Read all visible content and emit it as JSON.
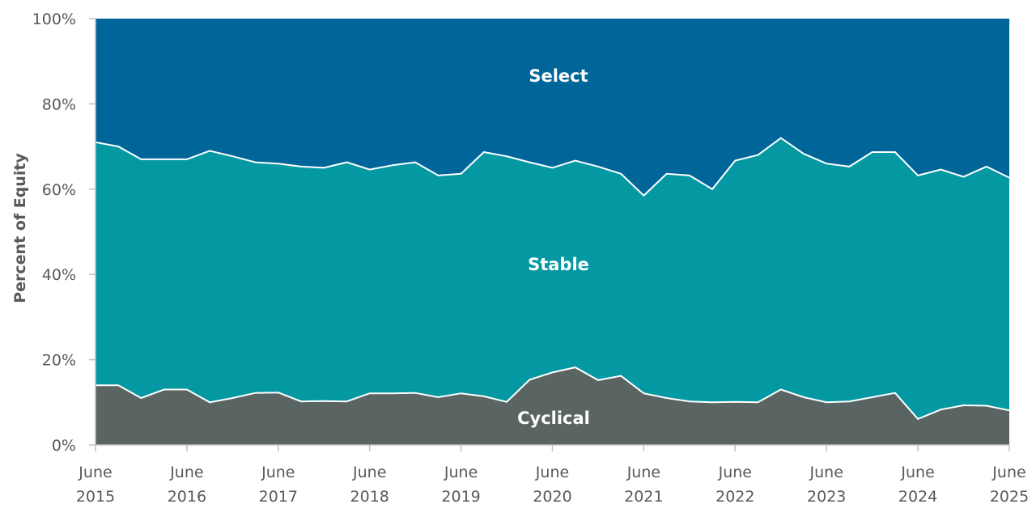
{
  "chart_data": {
    "type": "area",
    "stacked": true,
    "title": "",
    "xlabel": "",
    "ylabel": "Percent of Equity",
    "ylim": [
      0,
      100
    ],
    "yticks": [
      "0%",
      "20%",
      "40%",
      "60%",
      "80%",
      "100%"
    ],
    "ytick_values": [
      0,
      20,
      40,
      60,
      80,
      100
    ],
    "xticks": [
      {
        "month": "June",
        "year": "2015",
        "x": "2015-06"
      },
      {
        "month": "June",
        "year": "2016",
        "x": "2016-06"
      },
      {
        "month": "June",
        "year": "2017",
        "x": "2017-06"
      },
      {
        "month": "June",
        "year": "2018",
        "x": "2018-06"
      },
      {
        "month": "June",
        "year": "2019",
        "x": "2019-06"
      },
      {
        "month": "June",
        "year": "2020",
        "x": "2020-06"
      },
      {
        "month": "June",
        "year": "2021",
        "x": "2021-06"
      },
      {
        "month": "June",
        "year": "2022",
        "x": "2022-06"
      },
      {
        "month": "June",
        "year": "2023",
        "x": "2023-06"
      },
      {
        "month": "June",
        "year": "2024",
        "x": "2024-06"
      },
      {
        "month": "June",
        "year": "2025",
        "x": "2025-06"
      }
    ],
    "grid": false,
    "x": [
      "2015-06",
      "2015-09",
      "2015-12",
      "2016-03",
      "2016-06",
      "2016-09",
      "2016-12",
      "2017-03",
      "2017-06",
      "2017-09",
      "2017-12",
      "2018-03",
      "2018-06",
      "2018-09",
      "2018-12",
      "2019-03",
      "2019-06",
      "2019-09",
      "2019-12",
      "2020-03",
      "2020-06",
      "2020-09",
      "2020-12",
      "2021-03",
      "2021-06",
      "2021-09",
      "2021-12",
      "2022-03",
      "2022-06",
      "2022-09",
      "2022-12",
      "2023-03",
      "2023-06",
      "2023-09",
      "2023-12",
      "2024-03",
      "2024-06",
      "2024-09",
      "2024-12",
      "2025-03",
      "2025-06"
    ],
    "series": [
      {
        "name": "Cyclical",
        "color": "#5A6462",
        "values": [
          14,
          14,
          11,
          13,
          13,
          10,
          11,
          12.2,
          12.3,
          10.2,
          10.3,
          10.2,
          12.1,
          12.1,
          12.2,
          11.2,
          12.1,
          11.4,
          10.1,
          15.3,
          17,
          18.2,
          15.2,
          16.2,
          12.1,
          11,
          10.2,
          10,
          10.1,
          10,
          13,
          11.2,
          10,
          10.2,
          11.2,
          12.2,
          6.1,
          8.3,
          9.3,
          9.2,
          8.1
        ]
      },
      {
        "name": "Stable",
        "color": "#0499A2",
        "values": [
          57,
          56,
          56,
          54,
          54,
          59,
          56.7,
          54.1,
          53.7,
          55.1,
          54.7,
          56.1,
          52.5,
          53.5,
          54.1,
          52,
          51.5,
          57.3,
          57.6,
          51,
          48,
          48.5,
          50.1,
          47.4,
          46.4,
          52.6,
          53,
          50,
          56.6,
          58,
          59,
          57.1,
          56,
          55.1,
          57.5,
          56.5,
          57.1,
          56.3,
          53.6,
          56.1,
          54.6
        ]
      },
      {
        "name": "Select",
        "color": "#00669A",
        "values": [
          29,
          30,
          33,
          33,
          33,
          31,
          32.3,
          33.7,
          34,
          34.7,
          35,
          33.7,
          35.4,
          34.4,
          33.7,
          36.8,
          36.4,
          31.3,
          32.3,
          33.7,
          35,
          33.3,
          34.7,
          36.4,
          41.5,
          36.4,
          36.8,
          40,
          33.3,
          32,
          28,
          31.7,
          34,
          34.7,
          31.3,
          31.3,
          36.8,
          35.4,
          37.1,
          34.7,
          37.3
        ]
      }
    ],
    "legend": "inline labels"
  }
}
